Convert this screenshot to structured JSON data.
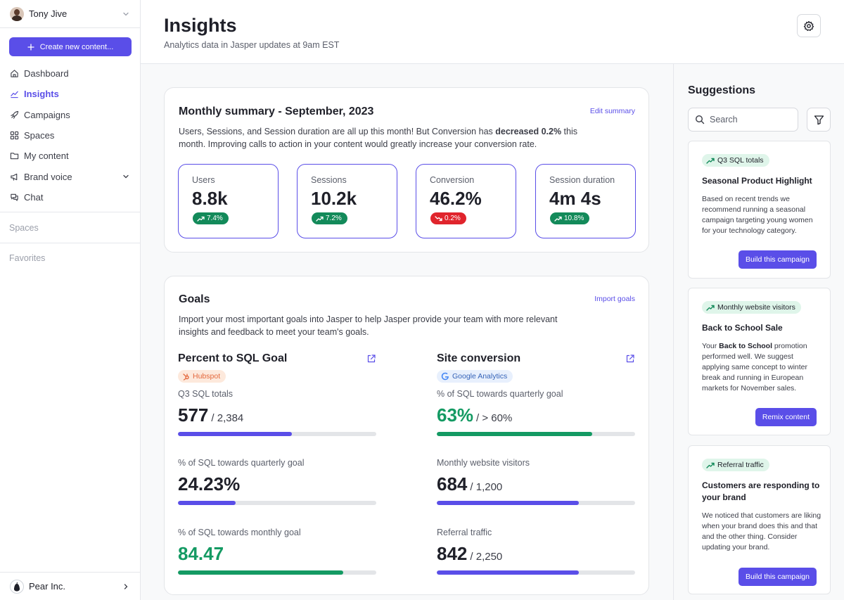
{
  "user": {
    "name": "Tony Jive"
  },
  "sidebar": {
    "create_label": "Create new content...",
    "items": [
      {
        "label": "Dashboard"
      },
      {
        "label": "Insights"
      },
      {
        "label": "Campaigns"
      },
      {
        "label": "Spaces"
      },
      {
        "label": "My content"
      },
      {
        "label": "Brand voice"
      },
      {
        "label": "Chat"
      }
    ],
    "spaces_label": "Spaces",
    "favorites_label": "Favorites",
    "org_name": "Pear Inc."
  },
  "header": {
    "title": "Insights",
    "subtitle": "Analytics data in Jasper updates at 9am EST"
  },
  "summary": {
    "title": "Monthly summary - September, 2023",
    "edit_label": "Edit summary",
    "desc_before": "Users, Sessions, and Session duration are all up this month! But Conversion has ",
    "desc_bold": "decreased 0.2%",
    "desc_after": " this month. Improving calls to action in your content would greatly increase your conversion rate.",
    "metrics": [
      {
        "label": "Users",
        "value": "8.8k",
        "change": "7.4%",
        "direction": "up"
      },
      {
        "label": "Sessions",
        "value": "10.2k",
        "change": "7.2%",
        "direction": "up"
      },
      {
        "label": "Conversion",
        "value": "46.2%",
        "change": "0.2%",
        "direction": "down"
      },
      {
        "label": "Session duration",
        "value": "4m 4s",
        "change": "10.8%",
        "direction": "up"
      }
    ]
  },
  "goals": {
    "title": "Goals",
    "import_label": "Import goals",
    "desc": "Import your most important goals into Jasper to help Jasper provide your team with more relevant insights and feedback to meet your team's goals.",
    "columns": [
      {
        "title": "Percent to SQL Goal",
        "source": "Hubspot",
        "rows": [
          {
            "label": "Q3 SQL totals",
            "value": "577",
            "target": "/ 2,384",
            "progress": 0.575
          },
          {
            "label": "% of SQL towards quarterly goal",
            "value": "24.23%",
            "target": "",
            "progress": 0.29
          },
          {
            "label": "% of SQL towards monthly goal",
            "value": "84.47",
            "target": "",
            "progress": 0.835
          }
        ]
      },
      {
        "title": "Site conversion",
        "source": "Google Analytics",
        "rows": [
          {
            "label": "% of SQL towards quarterly goal",
            "value": "63%",
            "target": "/ > 60%",
            "progress": 0.785
          },
          {
            "label": "Monthly website visitors",
            "value": "684",
            "target": "/ 1,200",
            "progress": 0.715
          },
          {
            "label": "Referral traffic",
            "value": "842",
            "target": "/ 2,250",
            "progress": 0.715
          }
        ]
      }
    ]
  },
  "suggestions": {
    "title": "Suggestions",
    "search_placeholder": "Search",
    "cards": [
      {
        "tag": "Q3 SQL totals",
        "title": "Seasonal Product Highlight",
        "body": "Based on recent trends we recommend running a seasonal campaign targeting young women for your technology category.",
        "button": "Build this campaign"
      },
      {
        "tag": "Monthly website visitors",
        "title": "Back to School Sale",
        "body_before": "Your ",
        "body_bold": "Back to School",
        "body_after": " promotion performed well. We suggest applying same concept to winter break and running in European markets for November sales.",
        "button": "Remix content"
      },
      {
        "tag": "Referral traffic",
        "title": "Customers are responding to your brand",
        "body": "We noticed that customers are liking when your brand does this and that and the other thing. Consider updating your brand.",
        "button": "Build this campaign"
      }
    ]
  },
  "colors": {
    "accent": "#5a4ee8",
    "positive": "#138a5a",
    "negative": "#e0242c"
  }
}
